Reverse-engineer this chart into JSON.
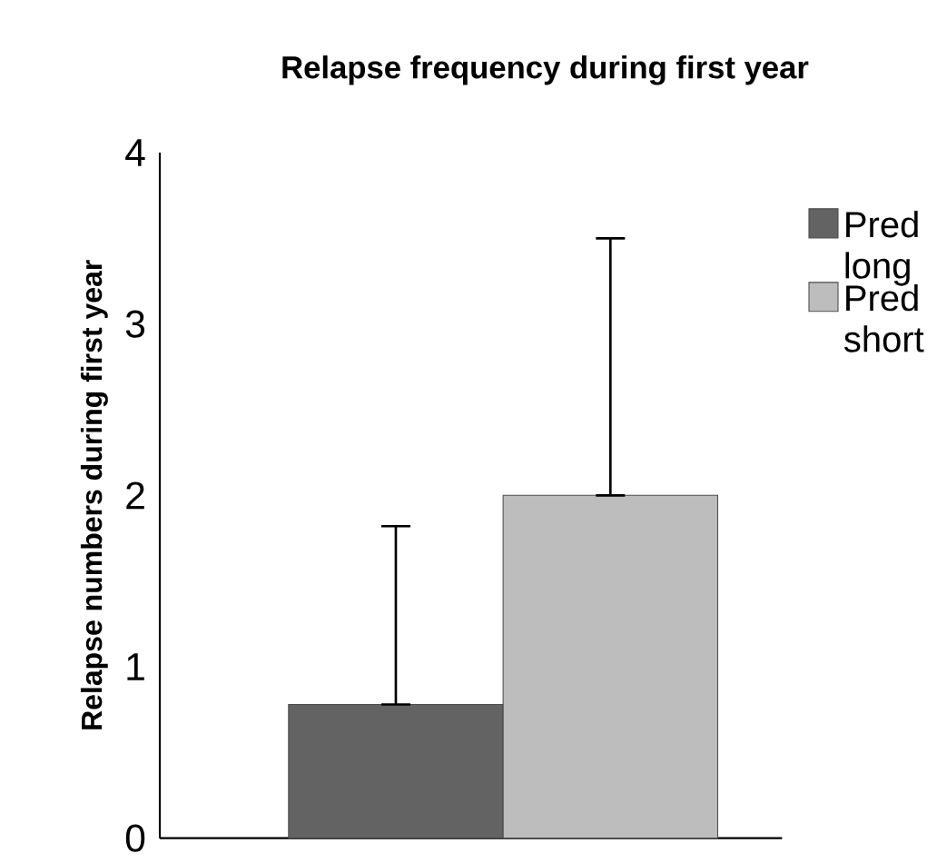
{
  "chart_data": {
    "type": "bar",
    "title": "Relapse frequency during first year",
    "ylabel": "Relapse numbers during first year",
    "categories": [
      null
    ],
    "series": [
      {
        "name": "Pred long",
        "color": "#636363",
        "values": [
          0.78
        ],
        "errors": [
          [
            0.78,
            1.82
          ]
        ]
      },
      {
        "name": "Pred short",
        "color": "#bdbdbd",
        "values": [
          2.0
        ],
        "errors": [
          [
            2.0,
            3.5
          ]
        ]
      }
    ],
    "ylim": [
      0,
      4
    ],
    "yticks": [
      0,
      1,
      2,
      3,
      4
    ],
    "grid": false,
    "legend": "right"
  }
}
